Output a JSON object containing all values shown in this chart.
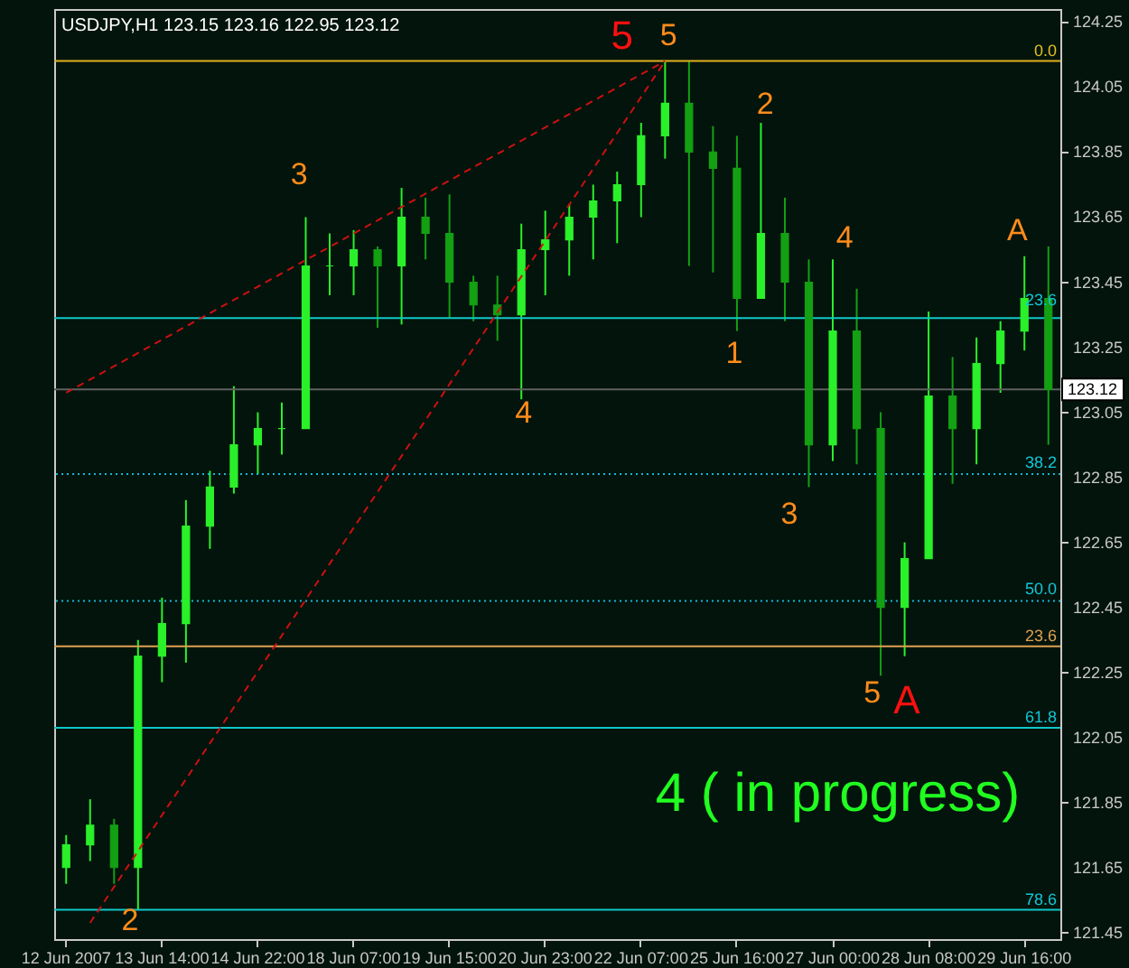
{
  "chart_data": {
    "type": "candlestick",
    "title": "USDJPY,H1  123.15 123.16 122.95 123.12",
    "colors": [
      "#2af02a",
      "#2af02a",
      "#13a013",
      "#2af02a",
      "#2af02a",
      "#2af02a",
      "#2af02a",
      "#2af02a",
      "#2af02a",
      "#2af02a",
      "#2af02a",
      "#2af02a",
      "#2af02a",
      "#13a013",
      "#2af02a",
      "#13a013",
      "#13a013",
      "#13a013",
      "#13a013",
      "#2af02a",
      "#2af02a",
      "#2af02a",
      "#2af02a",
      "#2af02a",
      "#2af02a",
      "#2af02a",
      "#13a013",
      "#13a013",
      "#13a013",
      "#2af02a",
      "#13a013",
      "#13a013",
      "#2af02a",
      "#13a013",
      "#13a013",
      "#2af02a",
      "#2af02a",
      "#13a013",
      "#2af02a",
      "#2af02a",
      "#2af02a",
      "#13a013"
    ],
    "categories": [
      "12 Jun 2007",
      null,
      null,
      null,
      "13 Jun 14:00",
      null,
      null,
      null,
      "14 Jun 22:00",
      null,
      null,
      null,
      "18 Jun 07:00",
      null,
      null,
      null,
      "19 Jun 15:00",
      null,
      null,
      null,
      "20 Jun 23:00",
      null,
      null,
      null,
      "22 Jun 07:00",
      null,
      null,
      null,
      "25 Jun 16:00",
      null,
      null,
      null,
      "27 Jun 00:00",
      null,
      null,
      null,
      "28 Jun 08:00",
      null,
      null,
      null,
      "29 Jun 16:00",
      null
    ],
    "ohlc": [
      [
        121.65,
        121.75,
        121.6,
        121.72
      ],
      [
        121.72,
        121.86,
        121.67,
        121.78
      ],
      [
        121.78,
        121.8,
        121.6,
        121.65
      ],
      [
        121.65,
        122.35,
        121.52,
        122.3
      ],
      [
        122.3,
        122.48,
        122.22,
        122.4
      ],
      [
        122.4,
        122.78,
        122.28,
        122.7
      ],
      [
        122.7,
        122.87,
        122.63,
        122.82
      ],
      [
        122.82,
        123.13,
        122.8,
        122.95
      ],
      [
        122.95,
        123.05,
        122.86,
        123.0
      ],
      [
        123.0,
        123.08,
        122.92,
        123.0
      ],
      [
        123.0,
        123.65,
        123.0,
        123.5
      ],
      [
        123.5,
        123.6,
        123.41,
        123.5
      ],
      [
        123.5,
        123.61,
        123.41,
        123.55
      ],
      [
        123.55,
        123.56,
        123.31,
        123.5
      ],
      [
        123.5,
        123.74,
        123.32,
        123.65
      ],
      [
        123.65,
        123.71,
        123.52,
        123.6
      ],
      [
        123.6,
        123.72,
        123.34,
        123.45
      ],
      [
        123.45,
        123.47,
        123.33,
        123.38
      ],
      [
        123.38,
        123.47,
        123.27,
        123.35
      ],
      [
        123.35,
        123.63,
        123.09,
        123.55
      ],
      [
        123.55,
        123.67,
        123.41,
        123.58
      ],
      [
        123.58,
        123.69,
        123.47,
        123.65
      ],
      [
        123.65,
        123.75,
        123.52,
        123.7
      ],
      [
        123.7,
        123.79,
        123.57,
        123.75
      ],
      [
        123.75,
        123.94,
        123.65,
        123.9
      ],
      [
        123.9,
        124.13,
        123.83,
        124.0
      ],
      [
        124.0,
        124.13,
        123.5,
        123.85
      ],
      [
        123.85,
        123.93,
        123.48,
        123.8
      ],
      [
        123.8,
        123.9,
        123.3,
        123.4
      ],
      [
        123.4,
        123.94,
        123.4,
        123.6
      ],
      [
        123.6,
        123.71,
        123.33,
        123.45
      ],
      [
        123.45,
        123.52,
        122.82,
        122.95
      ],
      [
        122.95,
        123.52,
        122.9,
        123.3
      ],
      [
        123.3,
        123.43,
        122.89,
        123.0
      ],
      [
        123.0,
        123.05,
        122.24,
        122.45
      ],
      [
        122.45,
        122.65,
        122.3,
        122.6
      ],
      [
        122.6,
        123.36,
        122.6,
        123.1
      ],
      [
        123.1,
        123.22,
        122.83,
        123.0
      ],
      [
        123.0,
        123.28,
        122.89,
        123.2
      ],
      [
        123.2,
        123.33,
        123.11,
        123.3
      ],
      [
        123.3,
        123.53,
        123.24,
        123.4
      ],
      [
        123.4,
        123.56,
        122.95,
        123.12
      ]
    ],
    "series": [
      {
        "type": "line",
        "color": "#cc1010",
        "line_style": "dashed",
        "values": [
          123.11,
          null,
          null,
          null,
          null,
          null,
          null,
          null,
          null,
          null,
          null,
          null,
          null,
          null,
          null,
          null,
          null,
          null,
          null,
          null,
          null,
          null,
          null,
          null,
          null,
          124.13,
          null,
          null,
          null,
          null,
          null,
          null,
          null,
          null,
          null,
          null,
          null,
          null,
          null,
          null,
          null,
          null
        ]
      },
      {
        "type": "line",
        "color": "#cc1010",
        "line_style": "dashed",
        "values": [
          null,
          121.48,
          null,
          null,
          null,
          null,
          null,
          null,
          null,
          null,
          null,
          null,
          null,
          null,
          null,
          null,
          null,
          null,
          null,
          null,
          null,
          null,
          null,
          null,
          null,
          124.13,
          null,
          null,
          null,
          null,
          null,
          null,
          null,
          null,
          null,
          null,
          null,
          null,
          null,
          null,
          null,
          null
        ]
      }
    ],
    "ylim": [
      121.43,
      124.29
    ],
    "yticks": [
      121.45,
      121.65,
      121.85,
      122.05,
      122.25,
      122.45,
      122.65,
      122.85,
      123.05,
      123.25,
      123.45,
      123.65,
      123.85,
      124.05,
      124.25
    ],
    "ref_lines": [
      {
        "axis": "y",
        "value": 124.13,
        "color": "#e0b020",
        "line_style": "solid"
      },
      {
        "axis": "y",
        "value": 123.34,
        "color": "#10c8c8",
        "line_style": "solid"
      },
      {
        "axis": "y",
        "value": 123.12,
        "label": "123.12",
        "color": "#606060",
        "line_style": "solid"
      },
      {
        "axis": "y",
        "value": 122.86,
        "color": "#10b8d8",
        "line_style": "dotted"
      },
      {
        "axis": "y",
        "value": 122.47,
        "color": "#10b8d8",
        "line_style": "dotted"
      },
      {
        "axis": "y",
        "value": 122.33,
        "color": "#e0a050",
        "line_style": "solid"
      },
      {
        "axis": "y",
        "value": 122.08,
        "color": "#10c8c8",
        "line_style": "solid"
      },
      {
        "axis": "y",
        "value": 121.52,
        "color": "#10c8c8",
        "line_style": "solid"
      }
    ],
    "annotations": [
      "5",
      "5",
      "3",
      "2",
      "4",
      "A",
      "1",
      "4",
      "3",
      "5",
      "A",
      "2",
      "4 ( in progress)",
      "0.0",
      "23.6",
      "38.2",
      "50.0",
      "23.6",
      "61.8",
      "78.6"
    ],
    "grid": false
  }
}
